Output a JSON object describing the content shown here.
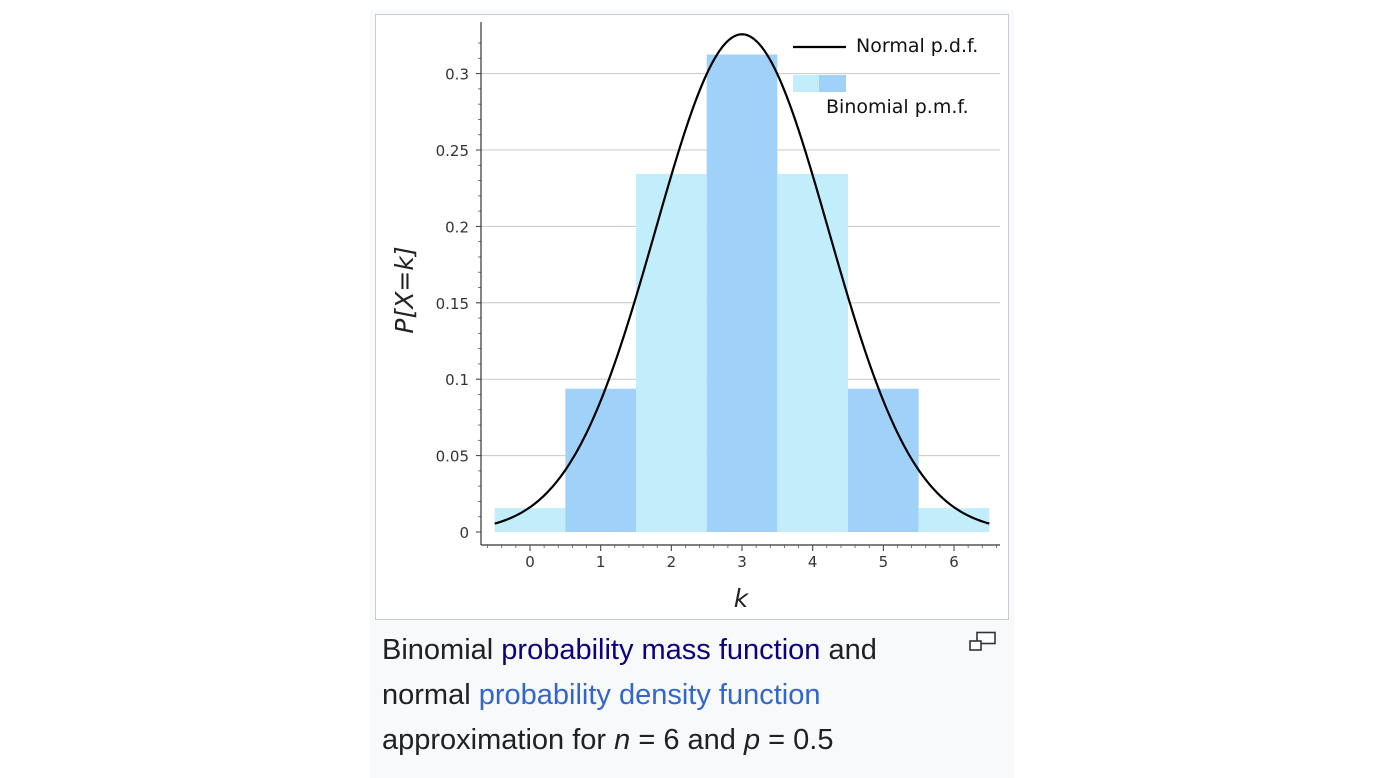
{
  "chart_data": {
    "type": "bar",
    "x": [
      0,
      1,
      2,
      3,
      4,
      5,
      6
    ],
    "series": [
      {
        "name": "Binomial p.m.f.",
        "values": [
          0.015625,
          0.09375,
          0.234375,
          0.3125,
          0.234375,
          0.09375,
          0.015625
        ]
      }
    ],
    "overlay_curve": {
      "name": "Normal p.d.f.",
      "type": "line",
      "mean": 3,
      "sd": 1.2247
    },
    "xlabel": "k",
    "ylabel": "P[X=k]",
    "xticks": [
      "0",
      "1",
      "2",
      "3",
      "4",
      "5",
      "6"
    ],
    "yticks": [
      "0",
      "0.05",
      "0.1",
      "0.15",
      "0.2",
      "0.25",
      "0.3"
    ],
    "xlim": [
      -0.7,
      6.7
    ],
    "ylim": [
      -0.01,
      0.345
    ],
    "grid": true,
    "legend_position": "top-right",
    "colors": {
      "bar_light": "#c1eefa",
      "bar_dark": "#a0d1f9",
      "curve": "#000000",
      "grid": "#c8c8c8"
    }
  },
  "caption": {
    "t1": "Binomial ",
    "link1": "probability mass function",
    "t2": " and normal ",
    "link2": "probability density function",
    "t3": " approximation for ",
    "n_var": "n",
    "t4": " = 6 and ",
    "p_var": "p",
    "t5": " = 0.5"
  },
  "icons": {
    "magnify": "magnify-icon"
  }
}
